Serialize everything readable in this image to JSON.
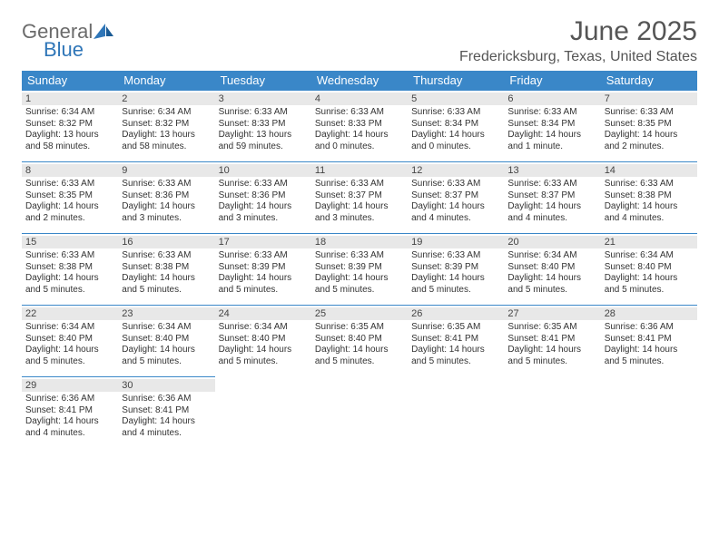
{
  "logo": {
    "line1": "General",
    "line2": "Blue"
  },
  "title": "June 2025",
  "location": "Fredericksburg, Texas, United States",
  "columns": [
    "Sunday",
    "Monday",
    "Tuesday",
    "Wednesday",
    "Thursday",
    "Friday",
    "Saturday"
  ],
  "header_bg": "#3a87c8",
  "header_fg": "#ffffff",
  "daynum_bg": "#e8e8e8",
  "divider_color": "#3a87c8",
  "weeks": [
    [
      {
        "n": "1",
        "sr": "6:34 AM",
        "ss": "8:32 PM",
        "dl": "13 hours and 58 minutes."
      },
      {
        "n": "2",
        "sr": "6:34 AM",
        "ss": "8:32 PM",
        "dl": "13 hours and 58 minutes."
      },
      {
        "n": "3",
        "sr": "6:33 AM",
        "ss": "8:33 PM",
        "dl": "13 hours and 59 minutes."
      },
      {
        "n": "4",
        "sr": "6:33 AM",
        "ss": "8:33 PM",
        "dl": "14 hours and 0 minutes."
      },
      {
        "n": "5",
        "sr": "6:33 AM",
        "ss": "8:34 PM",
        "dl": "14 hours and 0 minutes."
      },
      {
        "n": "6",
        "sr": "6:33 AM",
        "ss": "8:34 PM",
        "dl": "14 hours and 1 minute."
      },
      {
        "n": "7",
        "sr": "6:33 AM",
        "ss": "8:35 PM",
        "dl": "14 hours and 2 minutes."
      }
    ],
    [
      {
        "n": "8",
        "sr": "6:33 AM",
        "ss": "8:35 PM",
        "dl": "14 hours and 2 minutes."
      },
      {
        "n": "9",
        "sr": "6:33 AM",
        "ss": "8:36 PM",
        "dl": "14 hours and 3 minutes."
      },
      {
        "n": "10",
        "sr": "6:33 AM",
        "ss": "8:36 PM",
        "dl": "14 hours and 3 minutes."
      },
      {
        "n": "11",
        "sr": "6:33 AM",
        "ss": "8:37 PM",
        "dl": "14 hours and 3 minutes."
      },
      {
        "n": "12",
        "sr": "6:33 AM",
        "ss": "8:37 PM",
        "dl": "14 hours and 4 minutes."
      },
      {
        "n": "13",
        "sr": "6:33 AM",
        "ss": "8:37 PM",
        "dl": "14 hours and 4 minutes."
      },
      {
        "n": "14",
        "sr": "6:33 AM",
        "ss": "8:38 PM",
        "dl": "14 hours and 4 minutes."
      }
    ],
    [
      {
        "n": "15",
        "sr": "6:33 AM",
        "ss": "8:38 PM",
        "dl": "14 hours and 5 minutes."
      },
      {
        "n": "16",
        "sr": "6:33 AM",
        "ss": "8:38 PM",
        "dl": "14 hours and 5 minutes."
      },
      {
        "n": "17",
        "sr": "6:33 AM",
        "ss": "8:39 PM",
        "dl": "14 hours and 5 minutes."
      },
      {
        "n": "18",
        "sr": "6:33 AM",
        "ss": "8:39 PM",
        "dl": "14 hours and 5 minutes."
      },
      {
        "n": "19",
        "sr": "6:33 AM",
        "ss": "8:39 PM",
        "dl": "14 hours and 5 minutes."
      },
      {
        "n": "20",
        "sr": "6:34 AM",
        "ss": "8:40 PM",
        "dl": "14 hours and 5 minutes."
      },
      {
        "n": "21",
        "sr": "6:34 AM",
        "ss": "8:40 PM",
        "dl": "14 hours and 5 minutes."
      }
    ],
    [
      {
        "n": "22",
        "sr": "6:34 AM",
        "ss": "8:40 PM",
        "dl": "14 hours and 5 minutes."
      },
      {
        "n": "23",
        "sr": "6:34 AM",
        "ss": "8:40 PM",
        "dl": "14 hours and 5 minutes."
      },
      {
        "n": "24",
        "sr": "6:34 AM",
        "ss": "8:40 PM",
        "dl": "14 hours and 5 minutes."
      },
      {
        "n": "25",
        "sr": "6:35 AM",
        "ss": "8:40 PM",
        "dl": "14 hours and 5 minutes."
      },
      {
        "n": "26",
        "sr": "6:35 AM",
        "ss": "8:41 PM",
        "dl": "14 hours and 5 minutes."
      },
      {
        "n": "27",
        "sr": "6:35 AM",
        "ss": "8:41 PM",
        "dl": "14 hours and 5 minutes."
      },
      {
        "n": "28",
        "sr": "6:36 AM",
        "ss": "8:41 PM",
        "dl": "14 hours and 5 minutes."
      }
    ],
    [
      {
        "n": "29",
        "sr": "6:36 AM",
        "ss": "8:41 PM",
        "dl": "14 hours and 4 minutes."
      },
      {
        "n": "30",
        "sr": "6:36 AM",
        "ss": "8:41 PM",
        "dl": "14 hours and 4 minutes."
      },
      null,
      null,
      null,
      null,
      null
    ]
  ],
  "labels": {
    "sunrise": "Sunrise:",
    "sunset": "Sunset:",
    "daylight": "Daylight:"
  }
}
